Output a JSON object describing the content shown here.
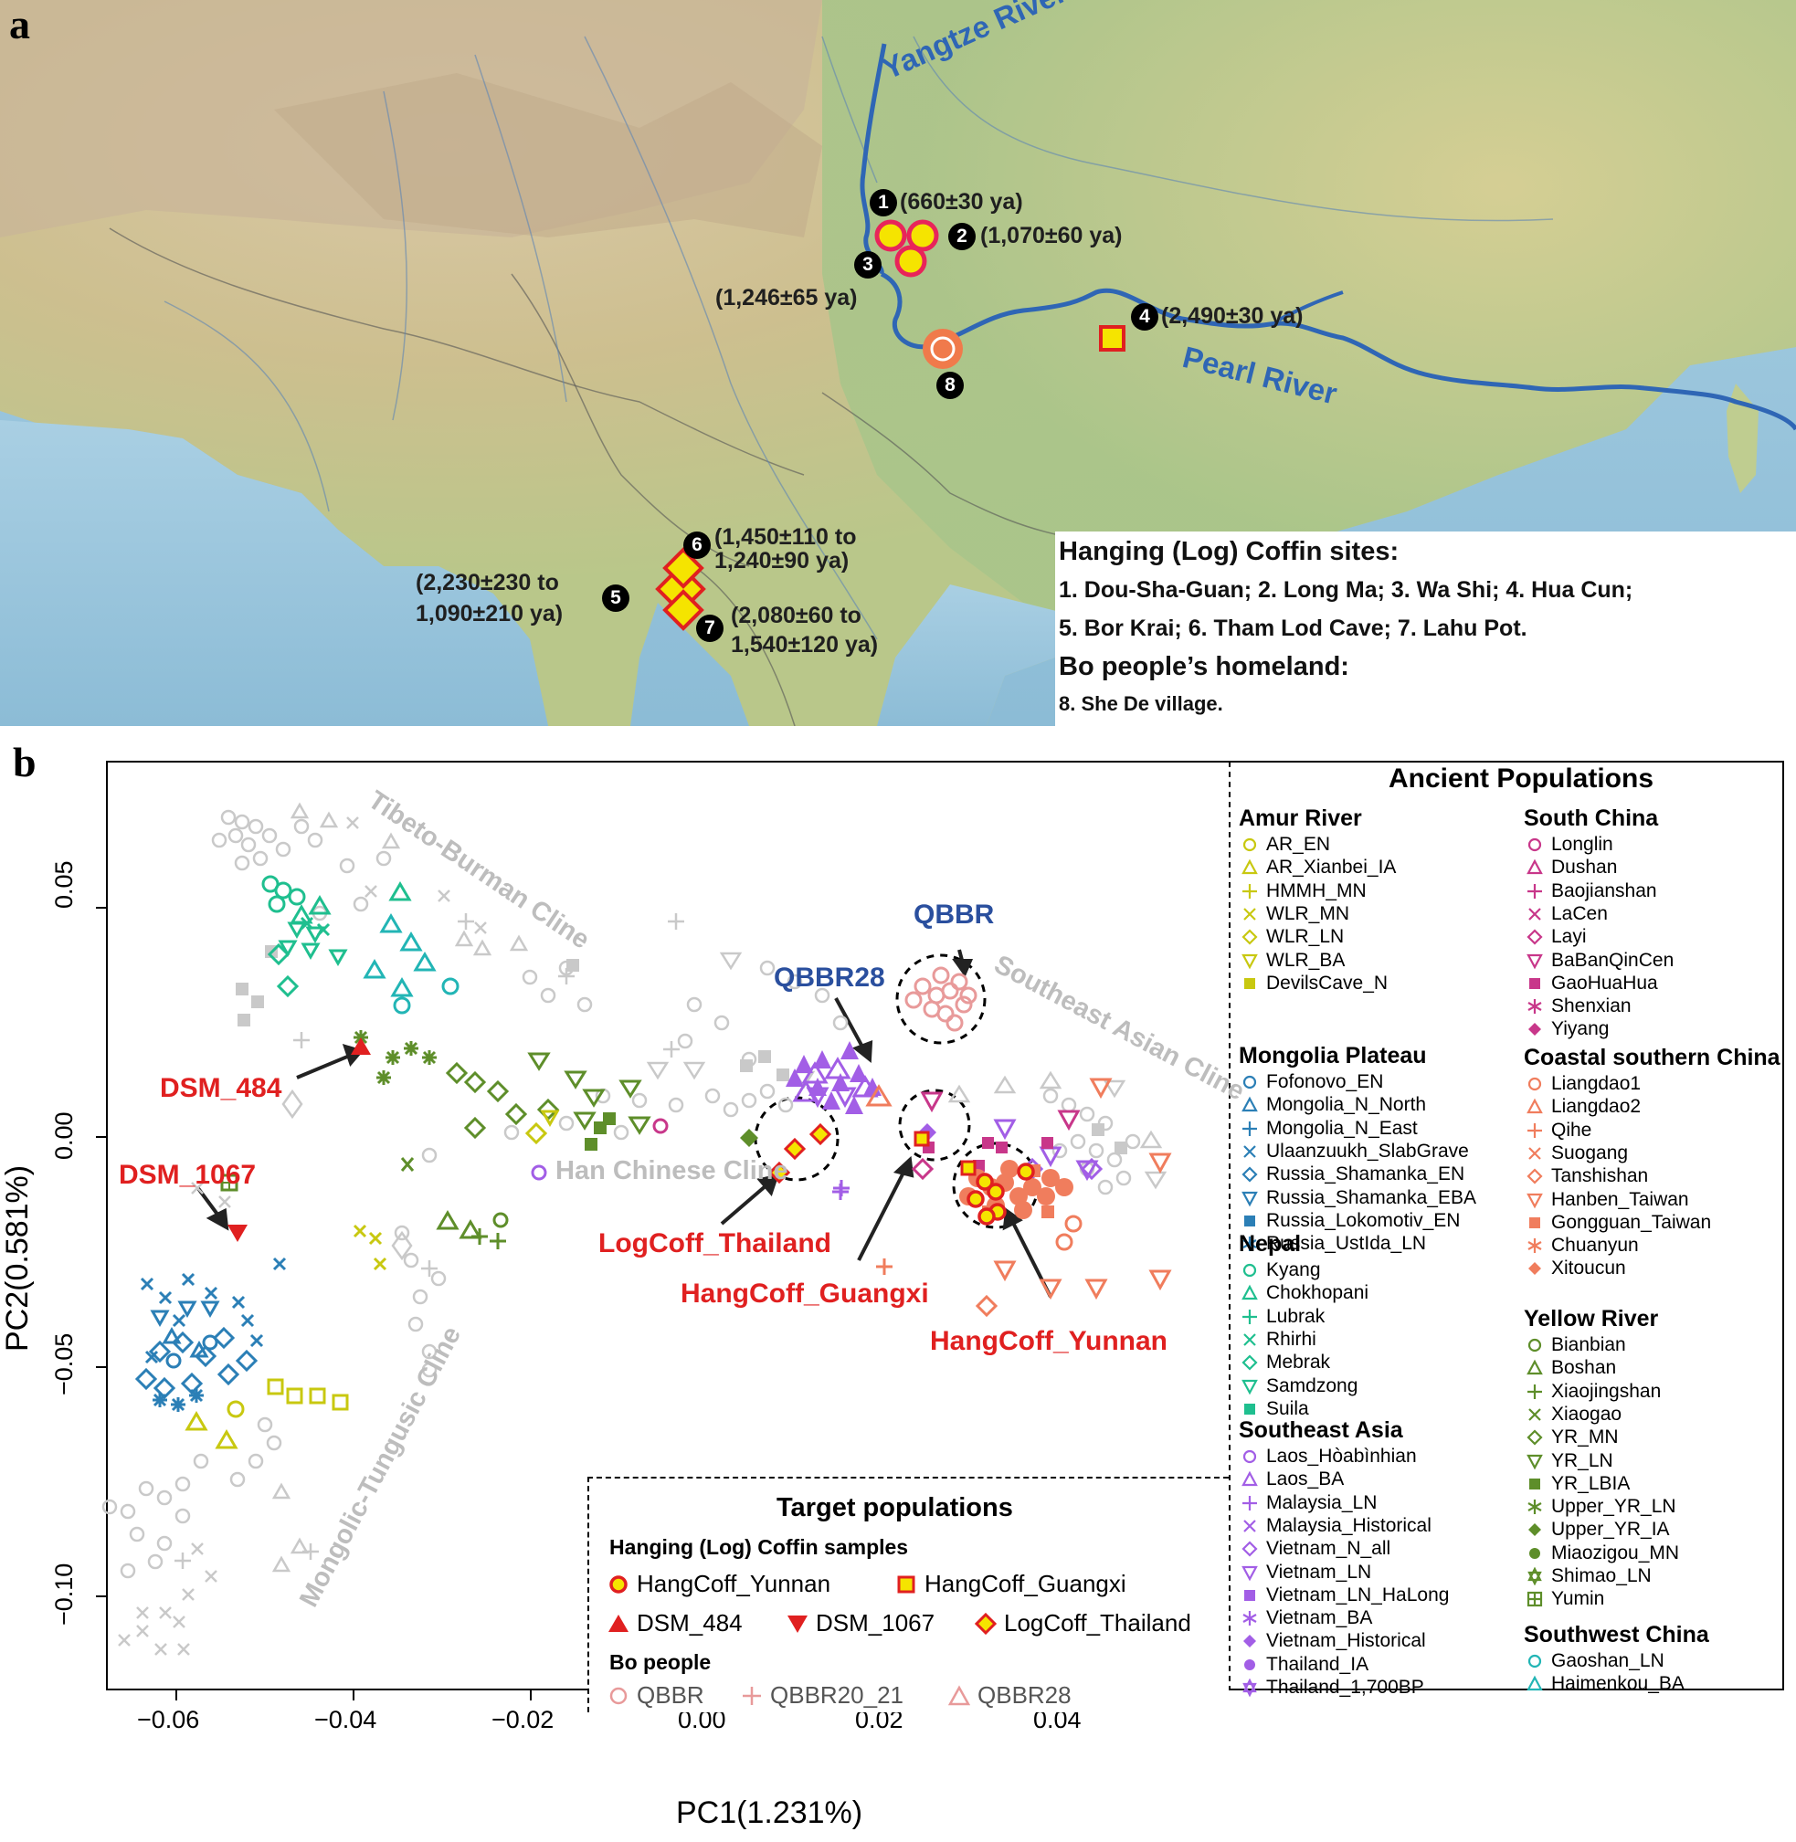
{
  "figure": {
    "panel_a_letter": "a",
    "panel_b_letter": "b"
  },
  "map": {
    "rivers": {
      "yangtze": "Yangtze River",
      "pearl": "Pearl River"
    },
    "sites": [
      {
        "id": "1",
        "date": "(660±30 ya)",
        "marker": "circle"
      },
      {
        "id": "2",
        "date": "(1,070±60 ya)",
        "marker": "circle"
      },
      {
        "id": "3",
        "date": "(1,246±65 ya)",
        "marker": "circle"
      },
      {
        "id": "4",
        "date": "(2,490±30 ya)",
        "marker": "square"
      },
      {
        "id": "5",
        "date_line1": "(2,230±230 to",
        "date_line2": "1,090±210 ya)",
        "marker": "diamond"
      },
      {
        "id": "6",
        "date_line1": "(1,450±110 to",
        "date_line2": "1,240±90 ya)",
        "marker": "diamond"
      },
      {
        "id": "7",
        "date_line1": "(2,080±60 to",
        "date_line2": "1,540±120 ya)",
        "marker": "diamond"
      },
      {
        "id": "8",
        "marker": "orange-circle"
      }
    ],
    "legend": {
      "heading1": "Hanging (Log) Coffin sites:",
      "line1": "1. Dou-Sha-Guan;  2. Long Ma;  3. Wa Shi;  4. Hua Cun;",
      "line2": "5. Bor Krai;  6. Tham Lod Cave;  7. Lahu Pot.",
      "heading2": "Bo people’s homeland:",
      "line3": "8. She De village."
    }
  },
  "chart_data": {
    "type": "scatter",
    "title": "",
    "xlabel": "PC1(1.231%)",
    "ylabel": "PC2(0.581%)",
    "xlim": [
      -0.067,
      0.056
    ],
    "ylim": [
      -0.125,
      0.077
    ],
    "xticks": [
      "−0.06",
      "−0.04",
      "−0.02",
      "0.00",
      "0.02",
      "0.04"
    ],
    "yticks": [
      "0.05",
      "0.00",
      "−0.05",
      "−0.10"
    ],
    "grid": false,
    "cline_labels": [
      "Tibeto-Burman Cline",
      "Southeast Asian Cline",
      "Han Chinese Cline",
      "Mongolic-Tungusic Cline"
    ],
    "annotations": [
      {
        "text": "QBBR",
        "color": "#2a4f9e",
        "xy": [
          0.0285,
          0.034
        ]
      },
      {
        "text": "QBBR28",
        "color": "#2a4f9e",
        "xy": [
          0.018,
          0.016
        ]
      },
      {
        "text": "DSM_484",
        "color": "#e02020",
        "xy": [
          -0.038,
          0.019
        ]
      },
      {
        "text": "DSM_1067",
        "color": "#e02020",
        "xy": [
          -0.053,
          -0.025
        ]
      },
      {
        "text": "LogCoff_Thailand",
        "color": "#e02020",
        "xy": [
          0.007,
          -0.007
        ]
      },
      {
        "text": "HangCoff_Guangxi",
        "color": "#e02020",
        "xy": [
          0.023,
          -0.002
        ]
      },
      {
        "text": "HangCoff_Yunnan",
        "color": "#e02020",
        "xy": [
          0.033,
          -0.016
        ]
      }
    ],
    "series": [
      {
        "name": "HangCoff_Yunnan",
        "marker": "circle",
        "color": "#e02020",
        "fill": "#f5e400",
        "points": [
          [
            0.03,
            -0.014
          ],
          [
            0.031,
            -0.011
          ],
          [
            0.032,
            -0.018
          ],
          [
            0.033,
            -0.012
          ],
          [
            0.036,
            -0.007
          ],
          [
            0.031,
            -0.019
          ],
          [
            0.03,
            -0.015
          ]
        ]
      },
      {
        "name": "HangCoff_Guangxi",
        "marker": "square",
        "color": "#e02020",
        "fill": "#f5e400",
        "points": [
          [
            0.024,
            0.0
          ],
          [
            0.029,
            -0.008
          ]
        ]
      },
      {
        "name": "DSM_484",
        "marker": "triangle-up",
        "color": "#e02020",
        "points": [
          [
            -0.038,
            0.02
          ]
        ]
      },
      {
        "name": "DSM_1067",
        "marker": "triangle-down",
        "color": "#e02020",
        "points": [
          [
            -0.053,
            -0.025
          ]
        ]
      },
      {
        "name": "LogCoff_Thailand",
        "marker": "diamond",
        "color": "#e02020",
        "fill": "#f5e400",
        "points": [
          [
            0.01,
            -0.002
          ],
          [
            0.008,
            -0.008
          ],
          [
            0.013,
            0.003
          ]
        ]
      },
      {
        "name": "QBBR",
        "marker": "open-circle",
        "color": "#e89a9a",
        "points": [
          [
            0.026,
            0.023
          ],
          [
            0.027,
            0.026
          ],
          [
            0.028,
            0.022
          ],
          [
            0.029,
            0.025
          ],
          [
            0.025,
            0.02
          ],
          [
            0.03,
            0.028
          ],
          [
            0.026,
            0.027
          ],
          [
            0.028,
            0.02
          ],
          [
            0.024,
            0.024
          ]
        ]
      },
      {
        "name": "QBBR20_21",
        "marker": "plus",
        "color": "#e89a9a",
        "points": [
          [
            0.021,
            -0.023
          ]
        ]
      },
      {
        "name": "QBBR28",
        "marker": "open-triangle",
        "color": "#e89a9a",
        "points": [
          [
            0.018,
            0.014
          ]
        ]
      },
      {
        "name": "Nepal (Kyang/Chokhopani/Rhirhi/Mebrak/Samdzong)",
        "marker": "mixed",
        "color": "#1fbf8f",
        "points": [
          [
            -0.048,
            0.055
          ],
          [
            -0.046,
            0.05
          ],
          [
            -0.045,
            0.046
          ],
          [
            -0.043,
            0.041
          ],
          [
            -0.047,
            0.04
          ],
          [
            -0.044,
            0.035
          ],
          [
            -0.049,
            0.032
          ]
        ]
      },
      {
        "name": "Mongolia Plateau",
        "marker": "mixed",
        "color": "#2b7fb6",
        "points": [
          [
            -0.058,
            -0.04
          ],
          [
            -0.056,
            -0.045
          ],
          [
            -0.06,
            -0.05
          ],
          [
            -0.054,
            -0.035
          ],
          [
            -0.052,
            -0.03
          ],
          [
            -0.061,
            -0.055
          ],
          [
            -0.057,
            -0.048
          ]
        ]
      },
      {
        "name": "Yellow River",
        "marker": "mixed",
        "color": "#5e8e2a",
        "points": [
          [
            -0.035,
            0.018
          ],
          [
            -0.03,
            0.015
          ],
          [
            -0.025,
            0.012
          ],
          [
            -0.02,
            0.008
          ],
          [
            -0.015,
            0.005
          ],
          [
            -0.01,
            0.003
          ],
          [
            -0.035,
            -0.01
          ]
        ]
      },
      {
        "name": "Southeast Asia",
        "marker": "mixed",
        "color": "#a25ee6",
        "points": [
          [
            0.013,
            0.01
          ],
          [
            0.015,
            0.008
          ],
          [
            0.016,
            0.011
          ],
          [
            0.012,
            0.006
          ],
          [
            0.014,
            0.005
          ],
          [
            0.038,
            -0.01
          ],
          [
            0.042,
            -0.012
          ]
        ]
      },
      {
        "name": "Coastal southern China",
        "marker": "mixed",
        "color": "#f07d5d",
        "points": [
          [
            0.035,
            -0.01
          ],
          [
            0.038,
            -0.013
          ],
          [
            0.04,
            -0.02
          ],
          [
            0.036,
            -0.025
          ],
          [
            0.045,
            -0.03
          ],
          [
            0.052,
            -0.013
          ]
        ]
      },
      {
        "name": "Amur River",
        "marker": "mixed",
        "color": "#c8c810",
        "points": [
          [
            -0.045,
            -0.01
          ],
          [
            -0.043,
            -0.012
          ],
          [
            -0.049,
            -0.056
          ],
          [
            -0.046,
            -0.057
          ],
          [
            -0.043,
            -0.058
          ],
          [
            -0.054,
            -0.062
          ],
          [
            -0.052,
            -0.059
          ]
        ]
      }
    ]
  },
  "ancient_legend": {
    "title": "Ancient Populations",
    "groups": [
      {
        "name": "Amur River",
        "items": [
          {
            "label": "AR_EN",
            "shape": "circle",
            "color": "#c8c810"
          },
          {
            "label": "AR_Xianbei_IA",
            "shape": "triangle",
            "color": "#c8c810"
          },
          {
            "label": "HMMH_MN",
            "shape": "plus",
            "color": "#c8c810"
          },
          {
            "label": "WLR_MN",
            "shape": "x",
            "color": "#c8c810"
          },
          {
            "label": "WLR_LN",
            "shape": "diamond",
            "color": "#c8c810"
          },
          {
            "label": "WLR_BA",
            "shape": "tri-down",
            "color": "#c8c810"
          },
          {
            "label": "DevilsCave_N",
            "shape": "square-fill",
            "color": "#c8c810"
          }
        ]
      },
      {
        "name": "Mongolia Plateau",
        "items": [
          {
            "label": "Fofonovo_EN",
            "shape": "circle",
            "color": "#2b7fb6"
          },
          {
            "label": "Mongolia_N_North",
            "shape": "triangle",
            "color": "#2b7fb6"
          },
          {
            "label": "Mongolia_N_East",
            "shape": "plus",
            "color": "#2b7fb6"
          },
          {
            "label": "Ulaanzuukh_SlabGrave",
            "shape": "x",
            "color": "#2b7fb6"
          },
          {
            "label": "Russia_Shamanka_EN",
            "shape": "diamond",
            "color": "#2b7fb6"
          },
          {
            "label": "Russia_Shamanka_EBA",
            "shape": "tri-down",
            "color": "#2b7fb6"
          },
          {
            "label": "Russia_Lokomotiv_EN",
            "shape": "square-fill",
            "color": "#2b7fb6"
          },
          {
            "label": "Russia_UstIda_LN",
            "shape": "asterisk",
            "color": "#2b7fb6"
          }
        ]
      },
      {
        "name": "Nepal",
        "items": [
          {
            "label": "Kyang",
            "shape": "circle",
            "color": "#1fbf8f"
          },
          {
            "label": "Chokhopani",
            "shape": "triangle",
            "color": "#1fbf8f"
          },
          {
            "label": "Lubrak",
            "shape": "plus",
            "color": "#1fbf8f"
          },
          {
            "label": "Rhirhi",
            "shape": "x",
            "color": "#1fbf8f"
          },
          {
            "label": "Mebrak",
            "shape": "diamond",
            "color": "#1fbf8f"
          },
          {
            "label": "Samdzong",
            "shape": "tri-down",
            "color": "#1fbf8f"
          },
          {
            "label": "Suila",
            "shape": "square-fill",
            "color": "#1fbf8f"
          }
        ]
      },
      {
        "name": "Southeast Asia",
        "items": [
          {
            "label": "Laos_Hòabìnhian",
            "shape": "circle",
            "color": "#a25ee6"
          },
          {
            "label": "Laos_BA",
            "shape": "triangle",
            "color": "#a25ee6"
          },
          {
            "label": "Malaysia_LN",
            "shape": "plus",
            "color": "#a25ee6"
          },
          {
            "label": "Malaysia_Historical",
            "shape": "x",
            "color": "#a25ee6"
          },
          {
            "label": "Vietnam_N_all",
            "shape": "diamond",
            "color": "#a25ee6"
          },
          {
            "label": "Vietnam_LN",
            "shape": "tri-down",
            "color": "#a25ee6"
          },
          {
            "label": "Vietnam_LN_HaLong",
            "shape": "square-fill",
            "color": "#a25ee6"
          },
          {
            "label": "Vietnam_BA",
            "shape": "asterisk",
            "color": "#a25ee6"
          },
          {
            "label": "Vietnam_Historical",
            "shape": "diamond-fill",
            "color": "#a25ee6"
          },
          {
            "label": "Thailand_IA",
            "shape": "circle-fill",
            "color": "#a25ee6"
          },
          {
            "label": "Thailand_1,700BP",
            "shape": "star",
            "color": "#a25ee6"
          }
        ]
      },
      {
        "name": "South China",
        "items": [
          {
            "label": "Longlin",
            "shape": "circle",
            "color": "#c8378a"
          },
          {
            "label": "Dushan",
            "shape": "triangle",
            "color": "#c8378a"
          },
          {
            "label": "Baojianshan",
            "shape": "plus",
            "color": "#c8378a"
          },
          {
            "label": "LaCen",
            "shape": "x",
            "color": "#c8378a"
          },
          {
            "label": "Layi",
            "shape": "diamond",
            "color": "#c8378a"
          },
          {
            "label": "BaBanQinCen",
            "shape": "tri-down",
            "color": "#c8378a"
          },
          {
            "label": "GaoHuaHua",
            "shape": "square-fill",
            "color": "#c8378a"
          },
          {
            "label": "Shenxian",
            "shape": "asterisk",
            "color": "#c8378a"
          },
          {
            "label": "Yiyang",
            "shape": "diamond-fill",
            "color": "#c8378a"
          }
        ]
      },
      {
        "name": "Coastal southern China",
        "items": [
          {
            "label": "Liangdao1",
            "shape": "circle",
            "color": "#f07d5d"
          },
          {
            "label": "Liangdao2",
            "shape": "triangle",
            "color": "#f07d5d"
          },
          {
            "label": "Qihe",
            "shape": "plus",
            "color": "#f07d5d"
          },
          {
            "label": "Suogang",
            "shape": "x",
            "color": "#f07d5d"
          },
          {
            "label": "Tanshishan",
            "shape": "diamond",
            "color": "#f07d5d"
          },
          {
            "label": "Hanben_Taiwan",
            "shape": "tri-down",
            "color": "#f07d5d"
          },
          {
            "label": "Gongguan_Taiwan",
            "shape": "square-fill",
            "color": "#f07d5d"
          },
          {
            "label": "Chuanyun",
            "shape": "asterisk",
            "color": "#f07d5d"
          },
          {
            "label": "Xitoucun",
            "shape": "diamond-fill",
            "color": "#f07d5d"
          }
        ]
      },
      {
        "name": "Yellow River",
        "items": [
          {
            "label": "Bianbian",
            "shape": "circle",
            "color": "#5e8e2a"
          },
          {
            "label": "Boshan",
            "shape": "triangle",
            "color": "#5e8e2a"
          },
          {
            "label": "Xiaojingshan",
            "shape": "plus",
            "color": "#5e8e2a"
          },
          {
            "label": "Xiaogao",
            "shape": "x",
            "color": "#5e8e2a"
          },
          {
            "label": "YR_MN",
            "shape": "diamond",
            "color": "#5e8e2a"
          },
          {
            "label": "YR_LN",
            "shape": "tri-down",
            "color": "#5e8e2a"
          },
          {
            "label": "YR_LBIA",
            "shape": "square-fill",
            "color": "#5e8e2a"
          },
          {
            "label": "Upper_YR_LN",
            "shape": "asterisk",
            "color": "#5e8e2a"
          },
          {
            "label": "Upper_YR_IA",
            "shape": "diamond-fill",
            "color": "#5e8e2a"
          },
          {
            "label": "Miaozigou_MN",
            "shape": "circle-fill",
            "color": "#5e8e2a"
          },
          {
            "label": "Shimao_LN",
            "shape": "star",
            "color": "#5e8e2a"
          },
          {
            "label": "Yumin",
            "shape": "square-plus",
            "color": "#5e8e2a"
          }
        ]
      },
      {
        "name": "Southwest China",
        "items": [
          {
            "label": "Gaoshan_LN",
            "shape": "circle",
            "color": "#22b5b5"
          },
          {
            "label": "Haimenkou_BA",
            "shape": "triangle",
            "color": "#22b5b5"
          }
        ]
      }
    ]
  },
  "target_legend": {
    "title": "Target populations",
    "group1": "Hanging (Log) Coffin samples",
    "group2": "Bo people",
    "items": {
      "hangcoff_yunnan": "HangCoff_Yunnan",
      "hangcoff_guangxi": "HangCoff_Guangxi",
      "dsm_484": "DSM_484",
      "dsm_1067": "DSM_1067",
      "logcoff_thailand": "LogCoff_Thailand",
      "qbbr": "QBBR",
      "qbbr20_21": "QBBR20_21",
      "qbbr28": "QBBR28"
    }
  }
}
